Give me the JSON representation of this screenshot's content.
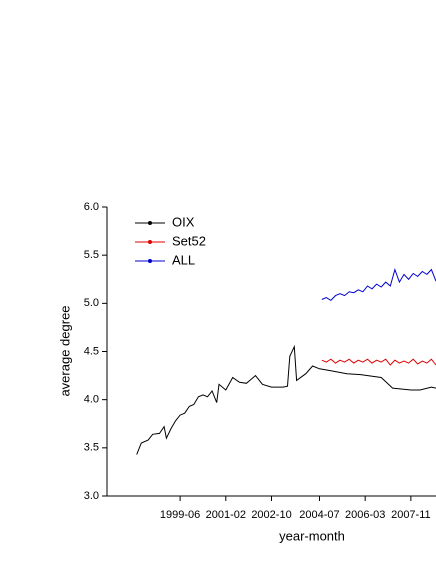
{
  "chart_data": {
    "type": "line",
    "ylabel": "average degree",
    "xlabel": "year-month",
    "xlim": [
      "1996-10",
      "2008-10"
    ],
    "xticks": [
      "1999-06",
      "2001-02",
      "2002-10",
      "2004-07",
      "2006-03",
      "2007-11"
    ],
    "ylim": [
      3,
      6
    ],
    "yticks": [
      {
        "value": 3,
        "label": "3.0"
      },
      {
        "value": 3.5,
        "label": "3.5"
      },
      {
        "value": 4,
        "label": "4.0"
      },
      {
        "value": 4.5,
        "label": "4.5"
      },
      {
        "value": 5,
        "label": "5.0"
      },
      {
        "value": 5.5,
        "label": "5.5"
      },
      {
        "value": 6,
        "label": "6.0"
      }
    ],
    "legend": "upper-left",
    "series": [
      {
        "name": "OIX",
        "color": "#000000",
        "x": [
          "1997-11",
          "1998-01",
          "1998-04",
          "1998-06",
          "1998-09",
          "1998-11",
          "1998-12",
          "1999-02",
          "1999-04",
          "1999-06",
          "1999-08",
          "1999-10",
          "1999-12",
          "2000-02",
          "2000-04",
          "2000-06",
          "2000-08",
          "2000-10",
          "2000-11",
          "2001-02",
          "2001-05",
          "2001-08",
          "2001-11",
          "2002-03",
          "2002-06",
          "2002-10",
          "2003-03",
          "2003-05",
          "2003-06",
          "2003-08",
          "2003-09",
          "2004-01",
          "2004-04",
          "2004-07",
          "2004-12",
          "2005-07",
          "2006-01",
          "2006-10",
          "2007-03",
          "2007-11",
          "2008-03",
          "2008-08",
          "2008-10"
        ],
        "values": [
          3.43,
          3.55,
          3.58,
          3.64,
          3.65,
          3.72,
          3.6,
          3.7,
          3.78,
          3.84,
          3.86,
          3.93,
          3.95,
          4.03,
          4.05,
          4.03,
          4.09,
          3.97,
          4.16,
          4.1,
          4.23,
          4.18,
          4.17,
          4.25,
          4.16,
          4.13,
          4.13,
          4.14,
          4.45,
          4.55,
          4.2,
          4.27,
          4.35,
          4.32,
          4.3,
          4.27,
          4.26,
          4.23,
          4.12,
          4.1,
          4.1,
          4.13,
          4.12
        ]
      },
      {
        "name": "Set52",
        "color": "#e00000",
        "x": [
          "2004-08",
          "2004-10",
          "2004-12",
          "2005-02",
          "2005-04",
          "2005-06",
          "2005-08",
          "2005-10",
          "2005-12",
          "2006-02",
          "2006-04",
          "2006-06",
          "2006-08",
          "2006-10",
          "2006-12",
          "2007-02",
          "2007-04",
          "2007-06",
          "2007-08",
          "2007-10",
          "2007-12",
          "2008-02",
          "2008-04",
          "2008-06",
          "2008-08",
          "2008-10"
        ],
        "values": [
          4.41,
          4.39,
          4.42,
          4.38,
          4.41,
          4.39,
          4.42,
          4.38,
          4.41,
          4.39,
          4.42,
          4.38,
          4.41,
          4.39,
          4.42,
          4.36,
          4.41,
          4.38,
          4.4,
          4.38,
          4.42,
          4.37,
          4.4,
          4.38,
          4.42,
          4.36
        ]
      },
      {
        "name": "ALL",
        "color": "#0000d0",
        "x": [
          "2004-08",
          "2004-10",
          "2004-12",
          "2005-02",
          "2005-04",
          "2005-06",
          "2005-08",
          "2005-10",
          "2005-12",
          "2006-02",
          "2006-04",
          "2006-06",
          "2006-08",
          "2006-10",
          "2006-12",
          "2007-02",
          "2007-04",
          "2007-06",
          "2007-08",
          "2007-10",
          "2007-12",
          "2008-02",
          "2008-04",
          "2008-06",
          "2008-08",
          "2008-10"
        ],
        "values": [
          5.04,
          5.06,
          5.03,
          5.08,
          5.1,
          5.08,
          5.12,
          5.11,
          5.14,
          5.12,
          5.18,
          5.15,
          5.2,
          5.17,
          5.22,
          5.18,
          5.35,
          5.22,
          5.3,
          5.25,
          5.31,
          5.28,
          5.33,
          5.3,
          5.35,
          5.23
        ]
      }
    ]
  }
}
